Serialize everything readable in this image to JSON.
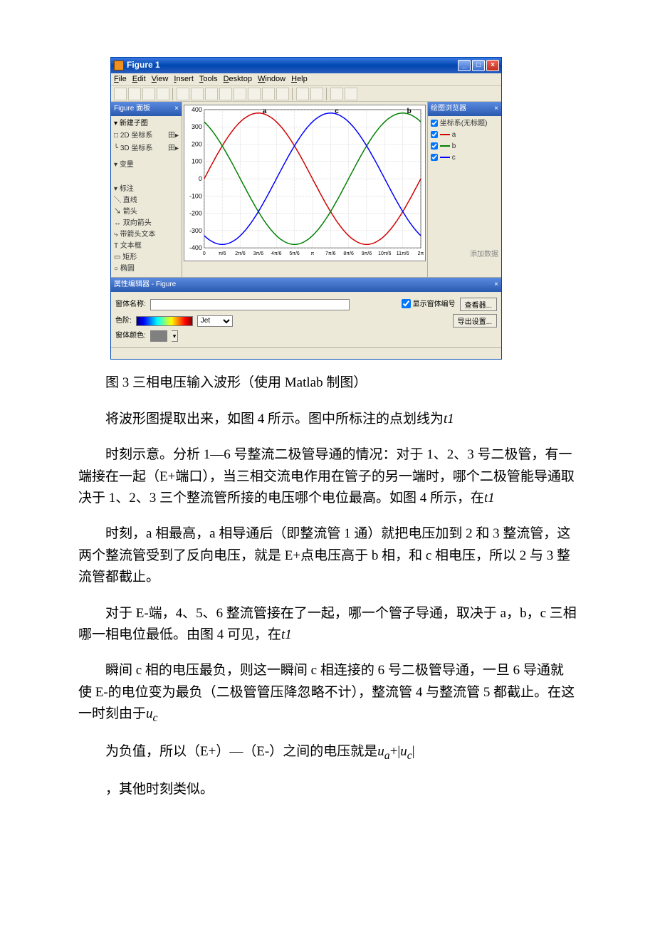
{
  "figure_window": {
    "title": "Figure 1",
    "menus": [
      "File",
      "Edit",
      "View",
      "Insert",
      "Tools",
      "Desktop",
      "Window",
      "Help"
    ],
    "left_panel": {
      "title": "Figure 面板",
      "section1": "新建子图",
      "row_2d": "2D 坐标系",
      "row_3d": "3D 坐标系",
      "section2": "变量",
      "section3": "标注",
      "anno": [
        "直线",
        "箭头",
        "双向箭头",
        "带箭头文本",
        "文本框",
        "矩形",
        "椭圆"
      ]
    },
    "right_panel": {
      "title": "绘图浏览器",
      "legend_title": "坐标系(无标题)",
      "series": [
        "a",
        "b",
        "c"
      ],
      "colors": [
        "#d00000",
        "#008000",
        "#0000ff"
      ],
      "link": "添加数据"
    },
    "plot": {
      "type": "line",
      "background_color": "#ffffff",
      "grid_color": "#c0c0c0",
      "series": [
        {
          "name": "a",
          "color": "#d00000",
          "phase": 0
        },
        {
          "name": "b",
          "color": "#008000",
          "phase": 2.094395
        },
        {
          "name": "c",
          "color": "#0000ff",
          "phase": 4.18879
        }
      ],
      "amplitude": 380,
      "xlim": [
        0,
        6.283185
      ],
      "ylim": [
        -400,
        400
      ],
      "yticks": [
        -400,
        -300,
        -200,
        -100,
        0,
        100,
        200,
        300,
        400
      ],
      "xtick_labels": [
        "0",
        "π/6",
        "2π/6",
        "3π/6",
        "4π/6",
        "5π/6",
        "π",
        "7π/6",
        "8π/6",
        "9π/6",
        "10π/6",
        "11π/6",
        "2π"
      ],
      "line_width": 1.5,
      "label_fontsize": 9
    },
    "prop": {
      "title": "属性编辑器 - Figure",
      "name_label": "窗体名称:",
      "colormap_label": "色阶:",
      "colormap_name": "Jet",
      "bg_label": "窗体颜色:",
      "checkbox": "显示窗体编号",
      "buttons": [
        "查看器...",
        "导出设置..."
      ]
    }
  },
  "text": {
    "caption": "图 3 三相电压输入波形（使用 Matlab 制图）",
    "p1a": "将波形图提取出来，如图 4 所示。图中所标注的点划线为",
    "p1b": "t1",
    "p2a": "时刻示意。分析 1—6 号整流二极管导通的情况：对于 1、2、3 号二极管，有一端接在一起（E+端口），当三相交流电作用在管子的另一端时，哪个二极管能导通取决于 1、2、3 三个整流管所接的电压哪个电位最高。如图 4 所示，在",
    "p2b": "t1",
    "p3": "时刻，a 相最高，a 相导通后（即整流管 1 通）就把电压加到 2 和 3 整流管，这两个整流管受到了反向电压，就是 E+点电压高于 b 相，和 c 相电压，所以 2 与 3 整流管都截止。",
    "p4a": "对于 E-端，4、5、6 整流管接在了一起，哪一个管子导通，取决于 a，b，c 三相哪一相电位最低。由图 4 可见，在",
    "p4b": "t1",
    "p5a": "瞬间 c 相的电压最负，则这一瞬间 c 相连接的 6 号二极管导通，一旦 6 导通就使 E-的电位变为最负（二极管管压降忽略不计），整流管 4 与整流管 5 都截止。在这一时刻由于",
    "p5b": "u",
    "p5c": "c",
    "p6a": "为负值，所以（E+）—（E-）之间的电压就是",
    "p6b": "u",
    "p6c": "a",
    "p6d": "+",
    "p6e": "|",
    "p6f": "u",
    "p6g": "c",
    "p6h": "|",
    "p7": "，其他时刻类似。"
  }
}
